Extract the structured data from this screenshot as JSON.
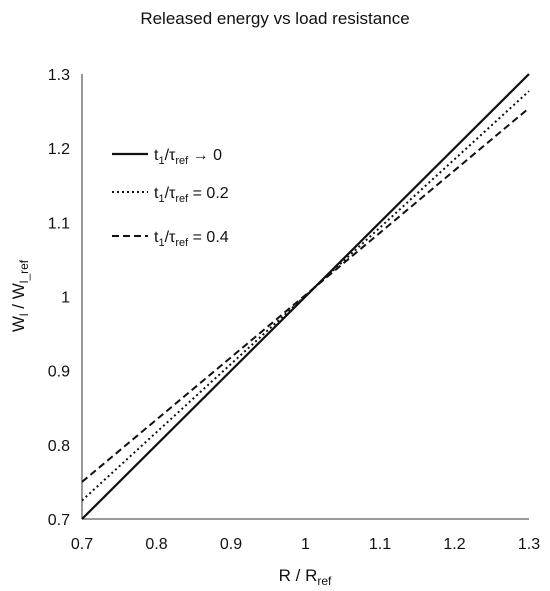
{
  "chart_data": {
    "type": "line",
    "title": "Released energy vs load resistance",
    "xlabel": {
      "main": "R / R",
      "sub": "ref"
    },
    "ylabel": {
      "main": "W",
      "sub1": "l",
      "mid": " / W",
      "sub2": "l_ref"
    },
    "xlim": [
      0.7,
      1.3
    ],
    "ylim": [
      0.7,
      1.3
    ],
    "xticks": [
      "0.7",
      "0.8",
      "0.9",
      "1",
      "1.1",
      "1.2",
      "1.3"
    ],
    "yticks": [
      "0.7",
      "0.8",
      "0.9",
      "1",
      "1.1",
      "1.2",
      "1.3"
    ],
    "grid": false,
    "legend_position": "top-left",
    "series": [
      {
        "legend": {
          "t": "t",
          "s1": "1",
          "slash": "/τ",
          "s2": "ref",
          "rest": " → 0"
        },
        "style": "solid",
        "x": [
          0.7,
          1.3
        ],
        "y": [
          0.7,
          1.3
        ]
      },
      {
        "legend": {
          "t": "t",
          "s1": "1",
          "slash": "/τ",
          "s2": "ref",
          "rest": " = 0.2"
        },
        "style": "dotted",
        "x": [
          0.7,
          1.3
        ],
        "y": [
          0.725,
          1.277
        ]
      },
      {
        "legend": {
          "t": "t",
          "s1": "1",
          "slash": "/τ",
          "s2": "ref",
          "rest": " = 0.4"
        },
        "style": "dashed",
        "x": [
          0.7,
          1.3
        ],
        "y": [
          0.75,
          1.254
        ]
      }
    ]
  }
}
